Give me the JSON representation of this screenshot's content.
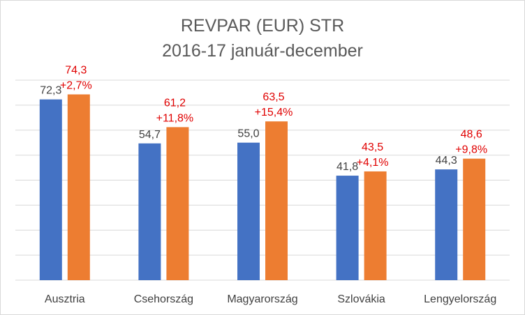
{
  "chart_data": {
    "type": "bar",
    "title": "REVPAR (EUR) STR",
    "subtitle": "2016-17 január-december",
    "categories": [
      "Ausztria",
      "Csehország",
      "Magyarország",
      "Szlovákia",
      "Lengyelország"
    ],
    "series": [
      {
        "values": [
          72.3,
          54.7,
          55.0,
          41.8,
          44.3
        ],
        "labels": [
          "72,3",
          "54,7",
          "55,0",
          "41,8",
          "44,3"
        ],
        "color": "#4472C4"
      },
      {
        "values": [
          74.3,
          61.2,
          63.5,
          43.5,
          48.6
        ],
        "labels": [
          "74,3",
          "61,2",
          "63,5",
          "43,5",
          "48,6"
        ],
        "changes": [
          "+2,7%",
          "+11,8%",
          "+15,4%",
          "+4,1%",
          "+9,8%"
        ],
        "color": "#ED7D31"
      }
    ],
    "ylim": [
      0,
      80
    ],
    "grid": true,
    "legend": "none",
    "label_colors": {
      "series1": "#404040",
      "series2": "#e00000"
    }
  }
}
